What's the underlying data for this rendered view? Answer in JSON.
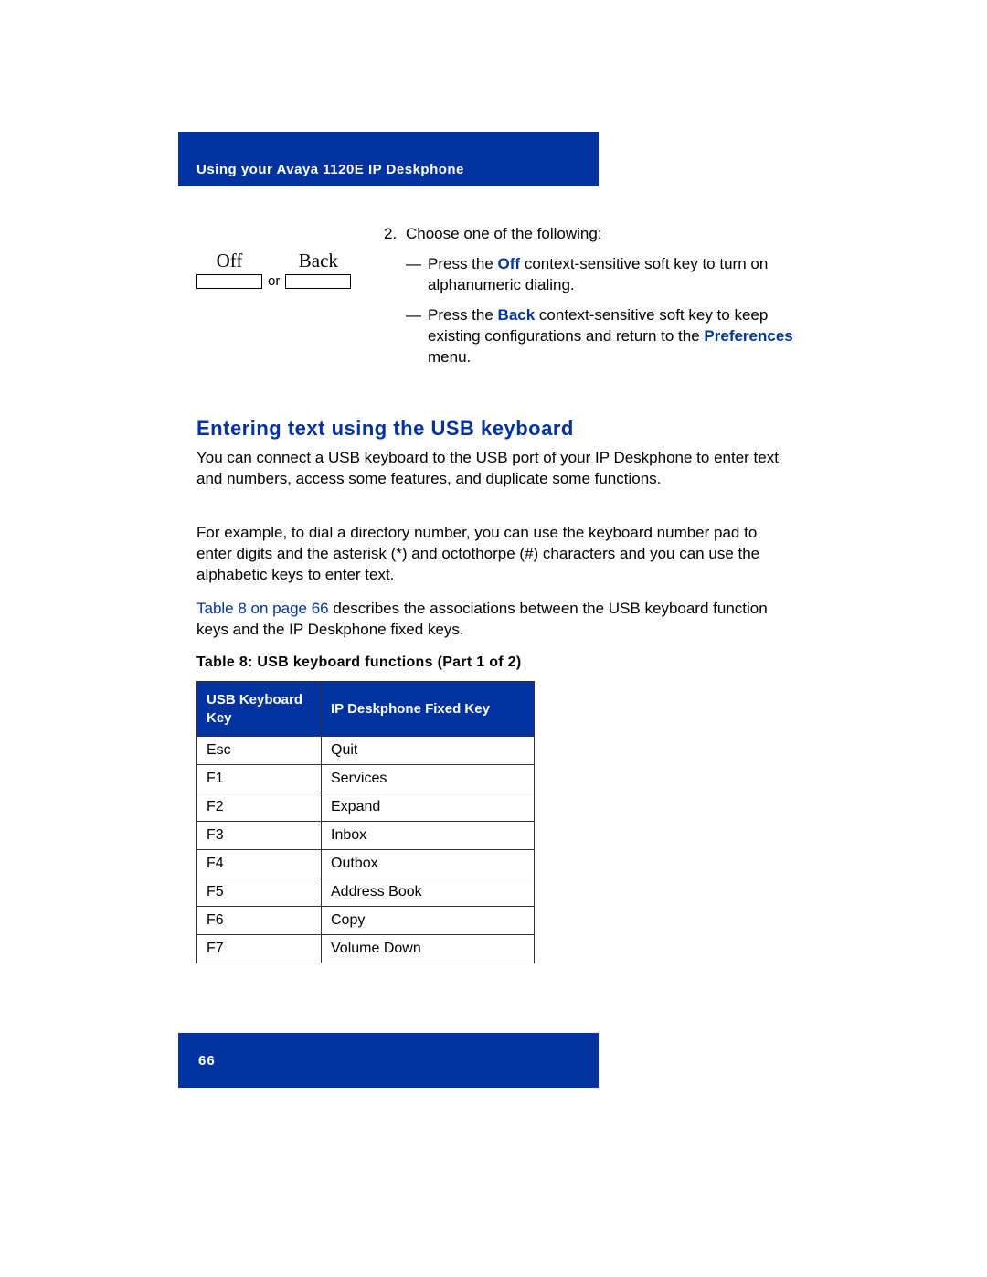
{
  "header": {
    "title": "Using your Avaya 1120E IP Deskphone"
  },
  "softkeys": {
    "left_label": "Off",
    "right_label": "Back",
    "separator": "or"
  },
  "step": {
    "number": "2.",
    "intro": "Choose one of the following:",
    "dash": "—",
    "option1_pre": "Press the ",
    "option1_bold": "Off",
    "option1_post": " context-sensitive soft key to turn on alphanumeric dialing.",
    "option2_pre": "Press the ",
    "option2_bold": "Back",
    "option2_mid": " context-sensitive soft key to keep existing configurations and return to the ",
    "option2_bold2": "Preferences",
    "option2_post": " menu."
  },
  "section": {
    "heading": "Entering text using the USB keyboard",
    "para1": "You can connect a USB keyboard to the USB port of your IP Deskphone to enter text and numbers, access some features, and duplicate some functions.",
    "para2": "For example, to dial a directory number, you can use the keyboard number pad to enter digits and the asterisk (*) and octothorpe (#) characters and you can use the alphabetic keys to enter text.",
    "para3_link": "Table 8 on page 66",
    "para3_rest": " describes the associations between the USB keyboard function keys and the IP Deskphone fixed keys."
  },
  "table": {
    "caption": "Table 8: USB keyboard functions (Part 1 of 2)",
    "columns": [
      "USB Keyboard Key",
      "IP Deskphone Fixed Key"
    ],
    "rows": [
      [
        "Esc",
        "Quit"
      ],
      [
        "F1",
        "Services"
      ],
      [
        "F2",
        "Expand"
      ],
      [
        "F3",
        "Inbox"
      ],
      [
        "F4",
        "Outbox"
      ],
      [
        "F5",
        "Address Book"
      ],
      [
        "F6",
        "Copy"
      ],
      [
        "F7",
        "Volume Down"
      ]
    ]
  },
  "footer": {
    "page_number": "66"
  },
  "colors": {
    "brand_blue": "#0033a0",
    "text_black": "#000000",
    "white": "#ffffff"
  }
}
